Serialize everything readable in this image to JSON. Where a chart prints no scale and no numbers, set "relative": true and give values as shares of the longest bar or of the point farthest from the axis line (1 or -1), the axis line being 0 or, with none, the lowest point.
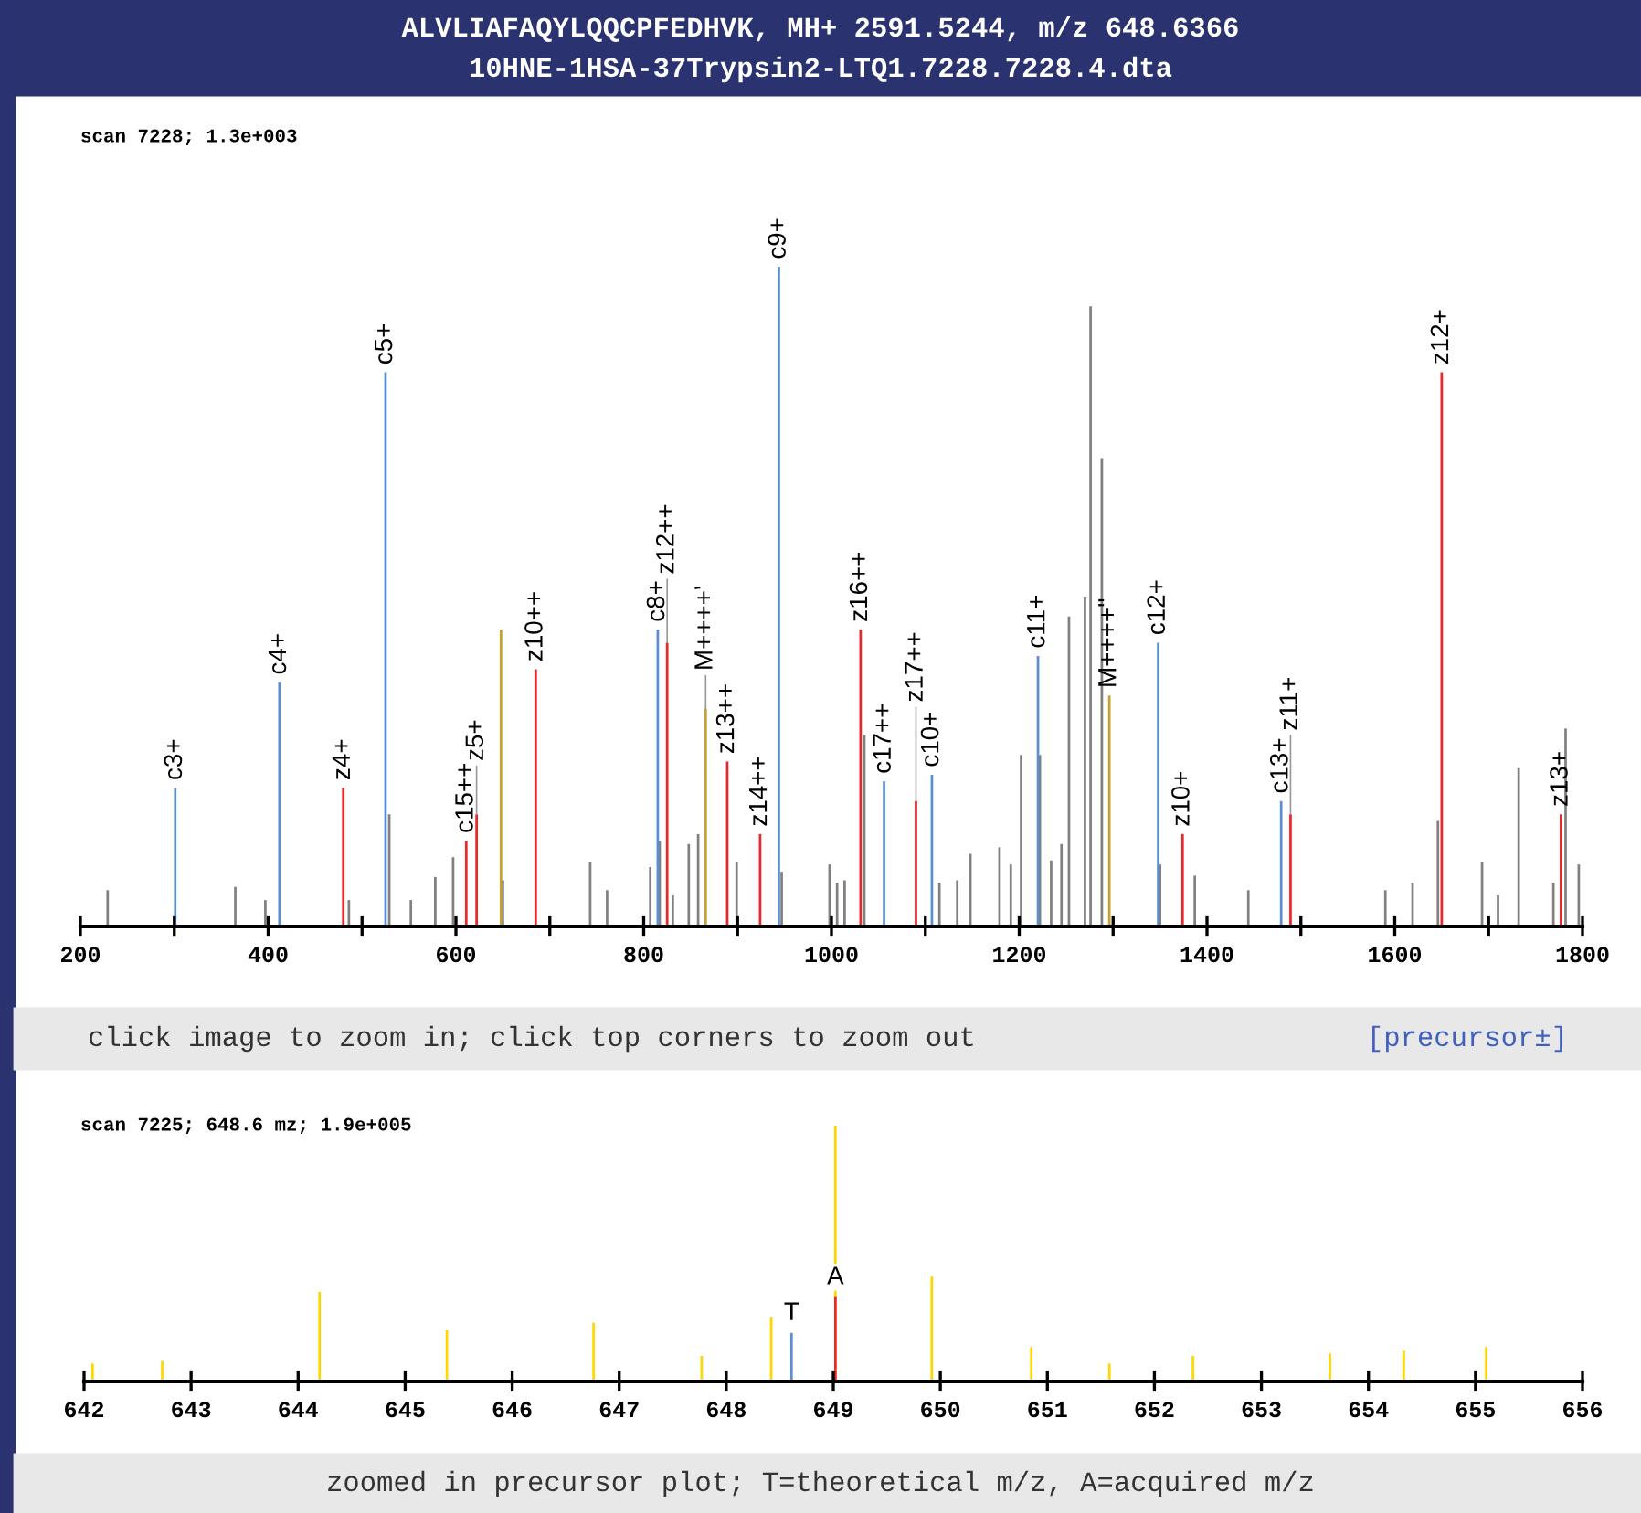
{
  "chart_data": [
    {
      "type": "bar",
      "title": "ALVLIAFAQYLQQCPFEDHVK, MH+ 2591.5244, m/z 648.6366",
      "subtitle": "10HNE-1HSA-37Trypsin2-LTQ1.7228.7228.4.dta",
      "relative": true,
      "grid": false,
      "legend": false,
      "xlim": [
        200,
        1800
      ],
      "xticks": [
        200,
        {
          "value": 300,
          "label": null
        },
        400,
        {
          "value": 500,
          "label": null
        },
        600,
        {
          "value": 700,
          "label": null
        },
        800,
        {
          "value": 900,
          "label": null
        },
        1000,
        {
          "value": 1100,
          "label": null
        },
        1200,
        {
          "value": 1300,
          "label": null
        },
        1400,
        {
          "value": 1500,
          "label": null
        },
        1600,
        {
          "value": 1700,
          "label": null
        },
        1800
      ],
      "series": [
        {
          "color": "#808080",
          "x": [
            229,
            365,
            397,
            486,
            529,
            552,
            578,
            597,
            650,
            743,
            761,
            807,
            817,
            831,
            848,
            858,
            899,
            947,
            998,
            1006,
            1014,
            1035,
            1115,
            1134,
            1148,
            1179,
            1191,
            1202,
            1222,
            1234,
            1245,
            1253,
            1270,
            1276,
            1288,
            1350,
            1387,
            1444,
            1590,
            1619,
            1646,
            1693,
            1710,
            1732,
            1769,
            1782,
            1796
          ],
          "values": [
            0.055,
            0.06,
            0.04,
            0.04,
            0.17,
            0.04,
            0.075,
            0.105,
            0.07,
            0.097,
            0.055,
            0.09,
            0.13,
            0.047,
            0.125,
            0.14,
            0.097,
            0.083,
            0.094,
            0.066,
            0.07,
            0.29,
            0.066,
            0.07,
            0.11,
            0.12,
            0.094,
            0.26,
            0.26,
            0.1,
            0.125,
            0.47,
            0.5,
            0.94,
            0.71,
            0.094,
            0.077,
            0.055,
            0.055,
            0.066,
            0.16,
            0.097,
            0.047,
            0.24,
            0.066,
            0.3,
            0.094
          ]
        },
        {
          "color": "#5b8fd4",
          "x": [
            301,
            412,
            525,
            815,
            944,
            1056,
            1107,
            1220,
            1348,
            1479
          ],
          "values": [
            0.21,
            0.37,
            0.84,
            0.45,
            1,
            0.22,
            0.23,
            0.41,
            0.43,
            0.19
          ]
        },
        {
          "color": "#e8282a",
          "x": [
            480,
            611,
            622,
            685,
            825,
            889,
            924,
            1031,
            1090,
            1374,
            1489,
            1650,
            1777
          ],
          "values": [
            0.21,
            0.13,
            0.17,
            0.39,
            0.43,
            0.25,
            0.14,
            0.45,
            0.19,
            0.14,
            0.17,
            0.84,
            0.17
          ]
        },
        {
          "color": "#c8a030",
          "x": [
            648,
            866,
            1296
          ],
          "values": [
            0.45,
            0.33,
            0.35
          ]
        }
      ],
      "annotations": [
        "scan 7228; 1.3e+003",
        "click image to zoom in; click top corners to zoom out",
        "[precursor±]",
        {
          "text": "c3+",
          "x": 301,
          "y": 0.21
        },
        {
          "text": "c4+",
          "x": 412,
          "y": 0.37
        },
        {
          "text": "c5+",
          "x": 525,
          "y": 0.84
        },
        {
          "text": "c8+",
          "x": 815,
          "y": 0.45
        },
        {
          "text": "c9+",
          "x": 944,
          "y": 1
        },
        {
          "text": "c17++",
          "x": 1056,
          "y": 0.22
        },
        {
          "text": "c10+",
          "x": 1107,
          "y": 0.23
        },
        {
          "text": "c11+",
          "x": 1220,
          "y": 0.41
        },
        {
          "text": "c12+",
          "x": 1348,
          "y": 0.43
        },
        {
          "text": "c13+",
          "x": 1479,
          "y": 0.19
        },
        {
          "text": "z4+",
          "x": 480,
          "y": 0.21
        },
        {
          "text": "c15++",
          "x": 611,
          "y": 0.13
        },
        {
          "text": "z5+",
          "x": 622,
          "y": 0.17
        },
        {
          "text": "z10++",
          "x": 685,
          "y": 0.39
        },
        {
          "text": "z12++",
          "x": 825,
          "y": 0.43
        },
        {
          "text": "z13++",
          "x": 889,
          "y": 0.25
        },
        {
          "text": "z14++",
          "x": 924,
          "y": 0.14
        },
        {
          "text": "z16++",
          "x": 1031,
          "y": 0.45
        },
        {
          "text": "z17++",
          "x": 1090,
          "y": 0.19
        },
        {
          "text": "z10+",
          "x": 1374,
          "y": 0.14
        },
        {
          "text": "z11+",
          "x": 1489,
          "y": 0.17
        },
        {
          "text": "z12+",
          "x": 1650,
          "y": 0.84
        },
        {
          "text": "z13+",
          "x": 1777,
          "y": 0.17
        },
        {
          "text": "M++++'",
          "x": 866,
          "y": 0.33
        },
        {
          "text": "M++++''",
          "x": 1296,
          "y": 0.35
        }
      ]
    },
    {
      "type": "bar",
      "relative": true,
      "grid": false,
      "legend": false,
      "xlim": [
        642,
        656
      ],
      "xticks": [
        642,
        643,
        644,
        645,
        646,
        647,
        648,
        649,
        650,
        651,
        652,
        653,
        654,
        655,
        656
      ],
      "series": [
        {
          "color": "#ffd700",
          "x": [
            642.08,
            642.73,
            644.2,
            645.39,
            646.76,
            647.77,
            648.42,
            649.02,
            649.92,
            650.85,
            651.58,
            652.36,
            653.64,
            654.33,
            655.1
          ],
          "values": [
            0.07,
            0.08,
            0.35,
            0.2,
            0.23,
            0.1,
            0.25,
            1,
            0.41,
            0.135,
            0.07,
            0.1,
            0.11,
            0.12,
            0.135
          ]
        },
        {
          "color": "#5b8fd4",
          "x": [
            648.61
          ],
          "values": [
            0.19
          ]
        },
        {
          "color": "#e8282a",
          "x": [
            649.02
          ],
          "values": [
            0.33
          ]
        }
      ],
      "annotations": [
        "scan 7225; 648.6 mz; 1.9e+005",
        "zoomed in precursor plot; T=theoretical m/z, A=acquired m/z",
        {
          "text": "T",
          "x": 648.61,
          "y": 0.19
        },
        {
          "text": "A",
          "x": 649.02,
          "y": 0.33
        }
      ]
    }
  ]
}
